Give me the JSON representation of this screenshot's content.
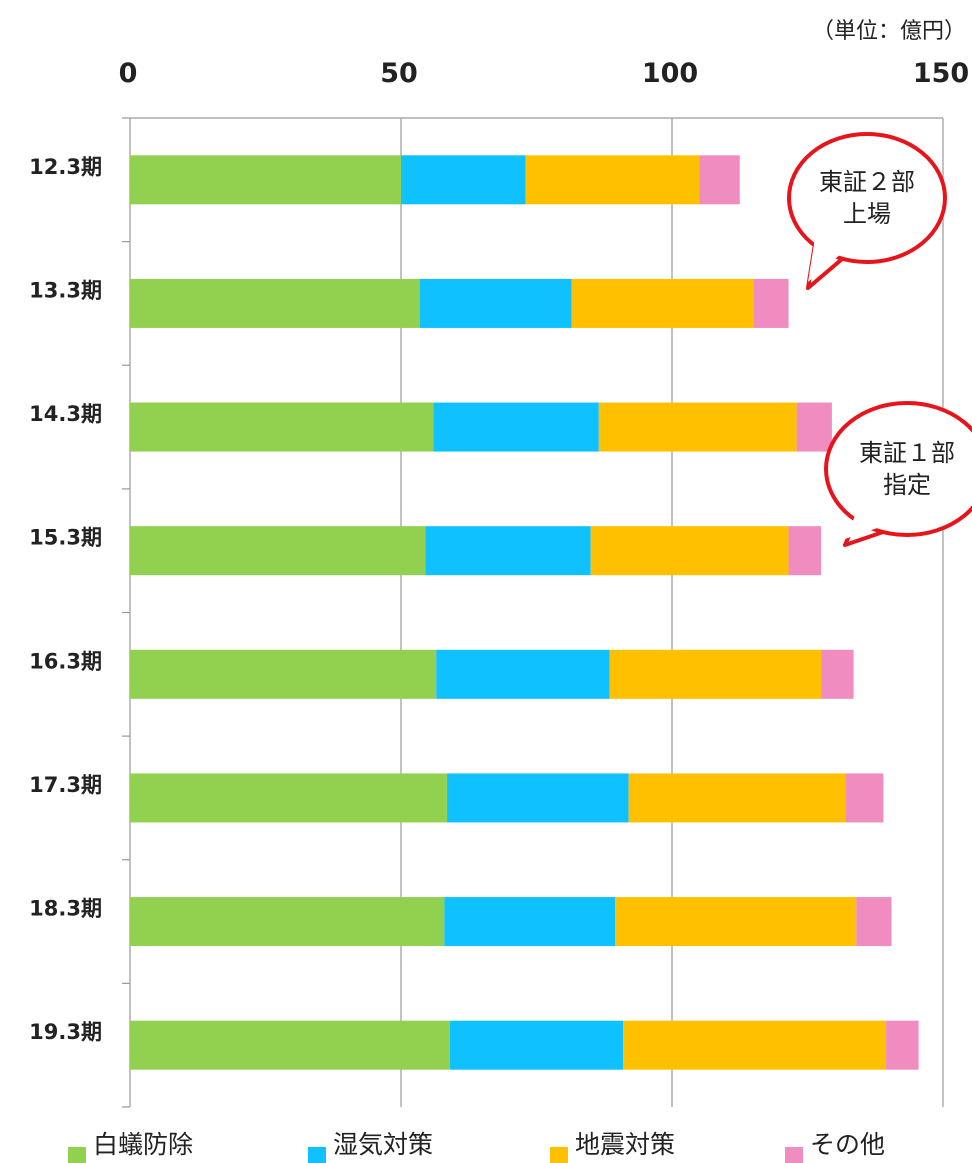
{
  "chart_data": {
    "type": "bar",
    "orientation": "horizontal",
    "stacked": true,
    "unit": "（単位：億円）",
    "title": "",
    "xlabel": "",
    "ylabel": "",
    "xlim": [
      0,
      150
    ],
    "x_ticks": [
      0,
      50,
      100,
      150
    ],
    "grid": true,
    "legend_position": "bottom",
    "categories": [
      "12.3期",
      "13.3期",
      "14.3期",
      "15.3期",
      "16.3期",
      "17.3期",
      "18.3期",
      "19.3期"
    ],
    "series": [
      {
        "name": "白蟻防除",
        "color": "#92d050",
        "values": [
          50,
          53.5,
          56,
          54.5,
          56.5,
          58.5,
          58,
          59
        ]
      },
      {
        "name": "湿気対策",
        "color": "#10c1ff",
        "values": [
          23,
          28,
          30.5,
          30.5,
          32,
          33.5,
          31.5,
          32
        ]
      },
      {
        "name": "地震対策",
        "color": "#ffc000",
        "values": [
          32,
          33.5,
          36.5,
          36.5,
          39,
          40,
          44.5,
          48.5
        ]
      },
      {
        "name": "その他",
        "color": "#f08cbf",
        "values": [
          7.5,
          6.5,
          6.5,
          6,
          6,
          7,
          6.5,
          6
        ]
      }
    ],
    "annotations": [
      {
        "lines": [
          "東証２部",
          "上場"
        ],
        "border_color": "#e8141b"
      },
      {
        "lines": [
          "東証１部",
          "指定"
        ],
        "border_color": "#e8141b"
      }
    ]
  }
}
